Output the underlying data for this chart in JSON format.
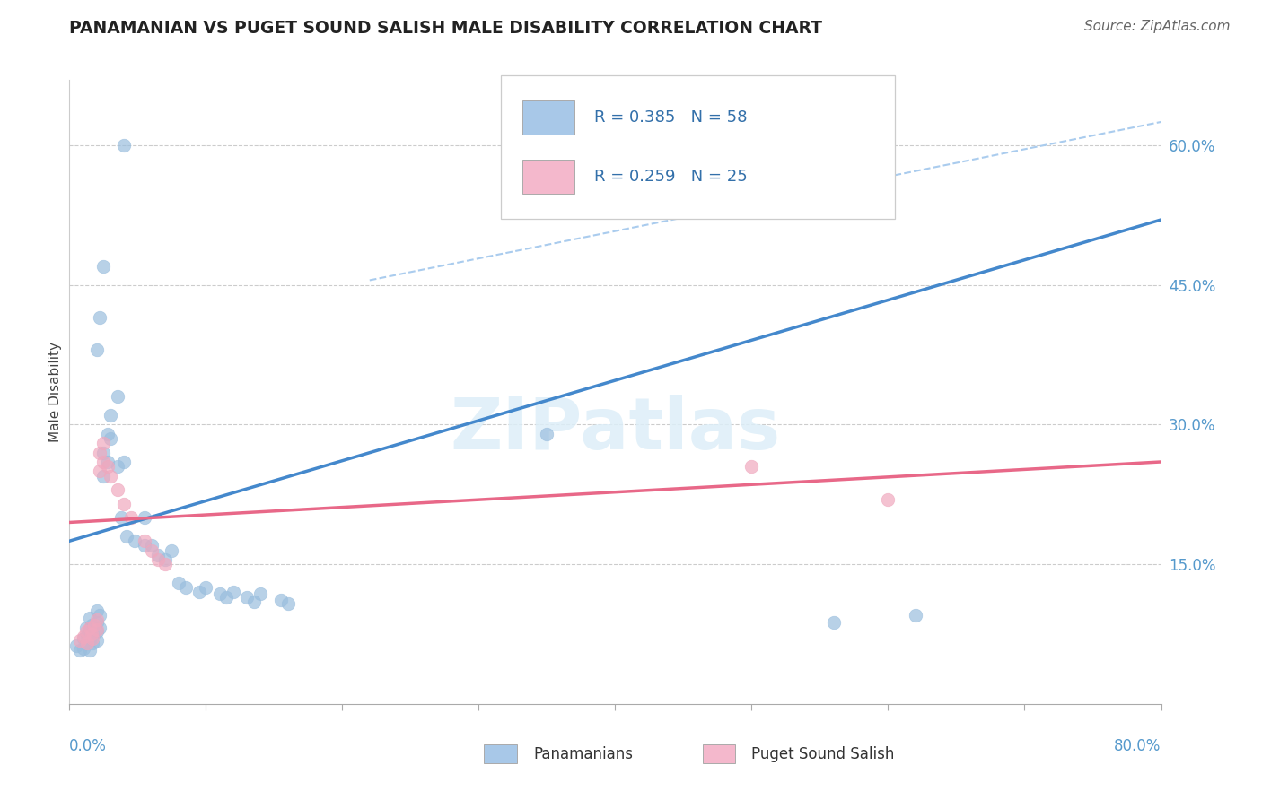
{
  "title": "PANAMANIAN VS PUGET SOUND SALISH MALE DISABILITY CORRELATION CHART",
  "source": "Source: ZipAtlas.com",
  "ylabel": "Male Disability",
  "x_label_0": "0.0%",
  "x_label_80": "80.0%",
  "y_ticks_right": [
    "15.0%",
    "30.0%",
    "45.0%",
    "60.0%"
  ],
  "y_ticks_right_vals": [
    0.15,
    0.3,
    0.45,
    0.6
  ],
  "x_min": 0.0,
  "x_max": 0.8,
  "y_min": 0.0,
  "y_max": 0.67,
  "legend_items": [
    {
      "label": "R = 0.385   N = 58",
      "color": "#a8c8e8"
    },
    {
      "label": "R = 0.259   N = 25",
      "color": "#f4b8cc"
    }
  ],
  "legend_bottom": [
    {
      "label": "Panamanians",
      "color": "#a8c8e8"
    },
    {
      "label": "Puget Sound Salish",
      "color": "#f4b8cc"
    }
  ],
  "blue_scatter": [
    [
      0.005,
      0.063
    ],
    [
      0.008,
      0.058
    ],
    [
      0.01,
      0.07
    ],
    [
      0.01,
      0.06
    ],
    [
      0.012,
      0.082
    ],
    [
      0.013,
      0.073
    ],
    [
      0.013,
      0.065
    ],
    [
      0.014,
      0.078
    ],
    [
      0.015,
      0.092
    ],
    [
      0.015,
      0.08
    ],
    [
      0.015,
      0.068
    ],
    [
      0.015,
      0.058
    ],
    [
      0.016,
      0.085
    ],
    [
      0.017,
      0.075
    ],
    [
      0.017,
      0.065
    ],
    [
      0.02,
      0.1
    ],
    [
      0.02,
      0.088
    ],
    [
      0.02,
      0.078
    ],
    [
      0.02,
      0.068
    ],
    [
      0.022,
      0.095
    ],
    [
      0.022,
      0.082
    ],
    [
      0.025,
      0.27
    ],
    [
      0.025,
      0.245
    ],
    [
      0.028,
      0.29
    ],
    [
      0.028,
      0.26
    ],
    [
      0.03,
      0.31
    ],
    [
      0.03,
      0.285
    ],
    [
      0.035,
      0.33
    ],
    [
      0.035,
      0.255
    ],
    [
      0.038,
      0.2
    ],
    [
      0.04,
      0.26
    ],
    [
      0.042,
      0.18
    ],
    [
      0.048,
      0.175
    ],
    [
      0.055,
      0.2
    ],
    [
      0.055,
      0.17
    ],
    [
      0.06,
      0.17
    ],
    [
      0.065,
      0.16
    ],
    [
      0.07,
      0.155
    ],
    [
      0.075,
      0.165
    ],
    [
      0.08,
      0.13
    ],
    [
      0.085,
      0.125
    ],
    [
      0.095,
      0.12
    ],
    [
      0.1,
      0.125
    ],
    [
      0.11,
      0.118
    ],
    [
      0.115,
      0.115
    ],
    [
      0.12,
      0.12
    ],
    [
      0.13,
      0.115
    ],
    [
      0.135,
      0.11
    ],
    [
      0.14,
      0.118
    ],
    [
      0.155,
      0.112
    ],
    [
      0.16,
      0.108
    ],
    [
      0.04,
      0.6
    ],
    [
      0.025,
      0.47
    ],
    [
      0.022,
      0.415
    ],
    [
      0.02,
      0.38
    ],
    [
      0.35,
      0.29
    ],
    [
      0.56,
      0.088
    ],
    [
      0.62,
      0.095
    ]
  ],
  "pink_scatter": [
    [
      0.008,
      0.068
    ],
    [
      0.01,
      0.072
    ],
    [
      0.012,
      0.078
    ],
    [
      0.013,
      0.065
    ],
    [
      0.015,
      0.082
    ],
    [
      0.016,
      0.075
    ],
    [
      0.017,
      0.07
    ],
    [
      0.018,
      0.085
    ],
    [
      0.02,
      0.09
    ],
    [
      0.02,
      0.08
    ],
    [
      0.022,
      0.27
    ],
    [
      0.022,
      0.25
    ],
    [
      0.025,
      0.28
    ],
    [
      0.025,
      0.26
    ],
    [
      0.028,
      0.255
    ],
    [
      0.03,
      0.245
    ],
    [
      0.035,
      0.23
    ],
    [
      0.04,
      0.215
    ],
    [
      0.045,
      0.2
    ],
    [
      0.055,
      0.175
    ],
    [
      0.06,
      0.165
    ],
    [
      0.065,
      0.155
    ],
    [
      0.07,
      0.15
    ],
    [
      0.5,
      0.255
    ],
    [
      0.6,
      0.22
    ]
  ],
  "blue_line_x": [
    0.0,
    0.8
  ],
  "blue_line_y": [
    0.175,
    0.52
  ],
  "pink_line_x": [
    0.0,
    0.8
  ],
  "pink_line_y": [
    0.195,
    0.26
  ],
  "dashed_line_x": [
    0.22,
    0.8
  ],
  "dashed_line_y": [
    0.455,
    0.625
  ],
  "watermark": "ZIPatlas",
  "scatter_size": 110,
  "blue_color": "#9abede",
  "pink_color": "#f0a8be",
  "blue_line_color": "#4488cc",
  "pink_line_color": "#e86888",
  "dashed_line_color": "#aaccee",
  "grid_color": "#cccccc",
  "grid_style": "--"
}
